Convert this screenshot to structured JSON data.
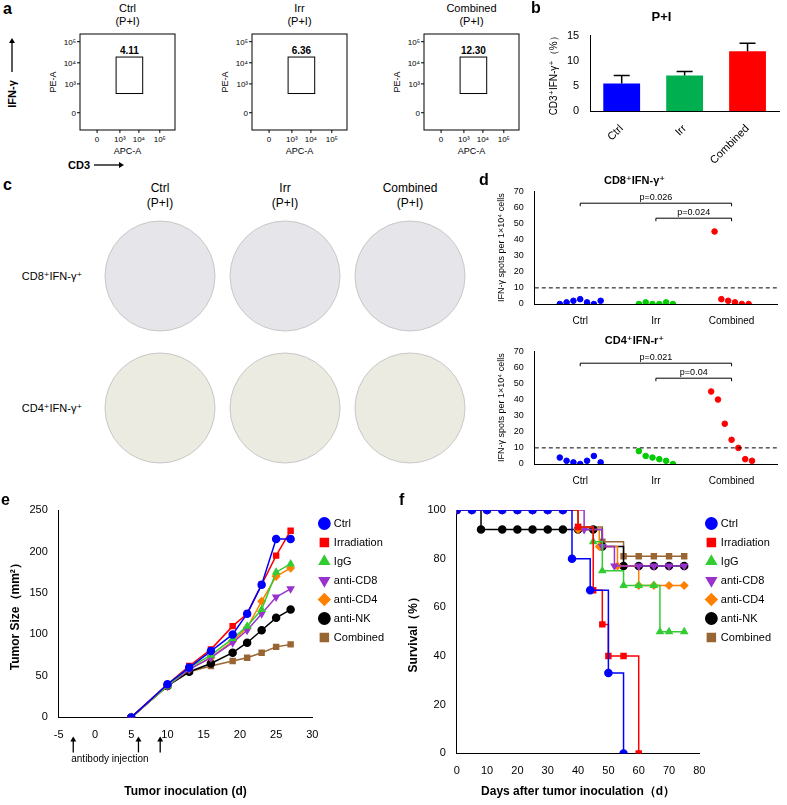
{
  "chart_data": [
    {
      "panel_label": "b",
      "type": "bar",
      "title": "P+I",
      "y_label": "CD3⁺IFN-γ⁺（%）",
      "categories": [
        "Ctrl",
        "Irr",
        "Combined"
      ],
      "values": [
        5.5,
        7.1,
        11.9
      ],
      "errors": [
        1.6,
        0.8,
        1.6
      ],
      "colors": [
        "#0000ff",
        "#00b050",
        "#ff0000"
      ],
      "ylim": [
        0,
        15
      ],
      "yticks": [
        0,
        5,
        10,
        15
      ],
      "grid": false
    },
    {
      "panel_label": "d",
      "type": "strip",
      "title": "CD8⁺IFN-γ⁺",
      "y_label": "IFN-γ spots per 1×10⁴ cells",
      "categories": [
        "Ctrl",
        "Irr",
        "Combined"
      ],
      "values": [
        [
          0,
          1,
          2,
          3,
          1,
          0,
          2
        ],
        [
          0,
          1,
          0,
          0,
          1,
          0
        ],
        [
          45,
          3,
          2,
          1,
          0,
          0
        ]
      ],
      "colors": [
        "#0000ff",
        "#00cc00",
        "#ff0000"
      ],
      "ylim": [
        0,
        70
      ],
      "yticks": [
        0,
        10,
        20,
        30,
        40,
        50,
        60,
        70
      ],
      "reference_line": 10,
      "comparisons": [
        {
          "from": "Ctrl",
          "to": "Combined",
          "label": "p=0.026"
        },
        {
          "from": "Irr",
          "to": "Combined",
          "label": "p=0.024"
        }
      ],
      "grid": false
    },
    {
      "type": "strip",
      "title": "CD4⁺IFN-r⁺",
      "y_label": "IFN-γ spots per 1×10⁴ cells",
      "categories": [
        "Ctrl",
        "Irr",
        "Combined"
      ],
      "values": [
        [
          4,
          2,
          1,
          0,
          2,
          5,
          1
        ],
        [
          8,
          5,
          4,
          3,
          2,
          0
        ],
        [
          45,
          40,
          25,
          15,
          10,
          3,
          2
        ]
      ],
      "colors": [
        "#0000ff",
        "#00cc00",
        "#ff0000"
      ],
      "ylim": [
        0,
        70
      ],
      "yticks": [
        0,
        10,
        20,
        30,
        40,
        50,
        60,
        70
      ],
      "reference_line": 10,
      "comparisons": [
        {
          "from": "Ctrl",
          "to": "Combined",
          "label": "p=0.021"
        },
        {
          "from": "Irr",
          "to": "Combined",
          "label": "p=0.04"
        }
      ],
      "grid": false
    },
    {
      "panel_label": "e",
      "type": "line",
      "x_label": "Tumor inoculation (d)",
      "y_label": "Tumor Size（mm²）",
      "x": [
        5,
        10,
        13,
        16,
        19,
        21,
        23,
        25,
        27
      ],
      "series": [
        {
          "name": "Ctrl",
          "color": "#0000ff",
          "marker": "circle",
          "values": [
            0,
            40,
            60,
            80,
            100,
            125,
            160,
            215,
            215
          ]
        },
        {
          "name": "Irradiation",
          "color": "#ff0000",
          "marker": "square",
          "values": [
            0,
            40,
            62,
            82,
            110,
            125,
            160,
            195,
            225
          ]
        },
        {
          "name": "IgG",
          "color": "#33cc33",
          "marker": "triangle",
          "values": [
            0,
            38,
            60,
            75,
            95,
            110,
            130,
            175,
            185
          ]
        },
        {
          "name": "anti-CD8",
          "color": "#9933cc",
          "marker": "triangle_down",
          "values": [
            0,
            38,
            58,
            72,
            90,
            105,
            125,
            145,
            155
          ]
        },
        {
          "name": "anti-CD4",
          "color": "#ff8000",
          "marker": "diamond",
          "values": [
            0,
            38,
            58,
            72,
            92,
            108,
            140,
            170,
            180
          ]
        },
        {
          "name": "anti-NK",
          "color": "#000000",
          "marker": "circle",
          "values": [
            0,
            38,
            55,
            65,
            78,
            90,
            105,
            120,
            130
          ]
        },
        {
          "name": "Combined",
          "color": "#996633",
          "marker": "square",
          "values": [
            0,
            38,
            55,
            62,
            68,
            72,
            78,
            85,
            88
          ]
        }
      ],
      "xlim": [
        -5,
        30
      ],
      "xticks": [
        -5,
        0,
        5,
        10,
        15,
        20,
        25,
        30
      ],
      "ylim": [
        0,
        250
      ],
      "yticks": [
        0,
        50,
        100,
        150,
        200,
        250
      ],
      "legend": "right",
      "grid": false,
      "arrows": {
        "x": [
          -3,
          6,
          9
        ],
        "label": "antibody injection"
      }
    },
    {
      "panel_label": "f",
      "type": "line",
      "line_style": "step",
      "x_label": "Days after tumor inoculation（d）",
      "y_label": "Survival（%）",
      "series": [
        {
          "name": "Ctrl",
          "color": "#0000ff",
          "marker": "circle",
          "x": [
            0,
            5,
            10,
            15,
            20,
            25,
            30,
            35,
            38,
            44,
            50,
            55
          ],
          "values": [
            100,
            100,
            100,
            100,
            100,
            100,
            100,
            100,
            80,
            67,
            33,
            0
          ]
        },
        {
          "name": "Irradiation",
          "color": "#ff0000",
          "marker": "square",
          "x": [
            0,
            5,
            10,
            15,
            20,
            25,
            30,
            35,
            40,
            45,
            48,
            50,
            55,
            60
          ],
          "values": [
            100,
            100,
            100,
            100,
            100,
            100,
            100,
            100,
            93,
            67,
            53,
            40,
            40,
            0
          ]
        },
        {
          "name": "IgG",
          "color": "#33cc33",
          "marker": "triangle",
          "x": [
            0,
            5,
            10,
            15,
            20,
            25,
            30,
            35,
            40,
            45,
            48,
            55,
            60,
            65,
            67,
            70,
            75
          ],
          "values": [
            100,
            100,
            100,
            100,
            100,
            100,
            100,
            100,
            93,
            87,
            75,
            69,
            69,
            69,
            50,
            50,
            50
          ]
        },
        {
          "name": "anti-CD8",
          "color": "#9933cc",
          "marker": "triangle_down",
          "x": [
            0,
            5,
            10,
            15,
            20,
            25,
            30,
            35,
            42,
            48,
            52,
            60,
            65,
            70,
            75
          ],
          "values": [
            100,
            100,
            100,
            100,
            100,
            100,
            100,
            100,
            92,
            85,
            77,
            77,
            77,
            77,
            77
          ]
        },
        {
          "name": "anti-CD4",
          "color": "#ff8000",
          "marker": "diamond",
          "x": [
            0,
            5,
            10,
            15,
            20,
            25,
            30,
            35,
            40,
            47,
            53,
            60,
            65,
            70,
            75
          ],
          "values": [
            100,
            100,
            100,
            100,
            100,
            100,
            100,
            100,
            92,
            85,
            77,
            69,
            69,
            69,
            69
          ]
        },
        {
          "name": "anti-NK",
          "color": "#000000",
          "marker": "circle",
          "x": [
            0,
            8,
            15,
            20,
            25,
            30,
            35,
            40,
            45,
            48,
            55,
            60,
            65,
            70,
            75
          ],
          "values": [
            100,
            92,
            92,
            92,
            92,
            92,
            92,
            92,
            92,
            85,
            77,
            77,
            77,
            77,
            77
          ]
        },
        {
          "name": "Combined",
          "color": "#996633",
          "marker": "square",
          "x": [
            0,
            5,
            10,
            15,
            20,
            25,
            30,
            35,
            40,
            48,
            55,
            60,
            65,
            70,
            75
          ],
          "values": [
            100,
            100,
            100,
            100,
            100,
            100,
            100,
            100,
            93,
            87,
            81,
            81,
            81,
            81,
            81
          ]
        }
      ],
      "xlim": [
        0,
        80
      ],
      "xticks": [
        0,
        10,
        20,
        30,
        40,
        50,
        60,
        70,
        80
      ],
      "ylim": [
        0,
        100
      ],
      "yticks": [
        0,
        20,
        40,
        60,
        80,
        100
      ],
      "legend": "right",
      "grid": false
    }
  ],
  "image_panels": [
    {
      "panel_label": "a",
      "x_label": "APC-A",
      "y_label": "PE-A",
      "x_marker": "CD3",
      "y_marker": "IFN-γ",
      "ticks": [
        "0",
        "10³",
        "10⁴",
        "10⁵"
      ],
      "plots": [
        {
          "title": "Ctrl",
          "subtitle": "(P+I)",
          "gate_label": "4.11"
        },
        {
          "title": "Irr",
          "subtitle": "(P+I)",
          "gate_label": "6.36"
        },
        {
          "title": "Combined",
          "subtitle": "(P+I)",
          "gate_label": "12.30"
        }
      ]
    },
    {
      "panel_label": "c",
      "columns": [
        {
          "title": "Ctrl",
          "subtitle": "(P+I)"
        },
        {
          "title": "Irr",
          "subtitle": "(P+I)"
        },
        {
          "title": "Combined",
          "subtitle": "(P+I)"
        }
      ],
      "rows": [
        "CD8⁺IFN-γ⁺",
        "CD4⁺IFN-γ⁺"
      ]
    }
  ]
}
